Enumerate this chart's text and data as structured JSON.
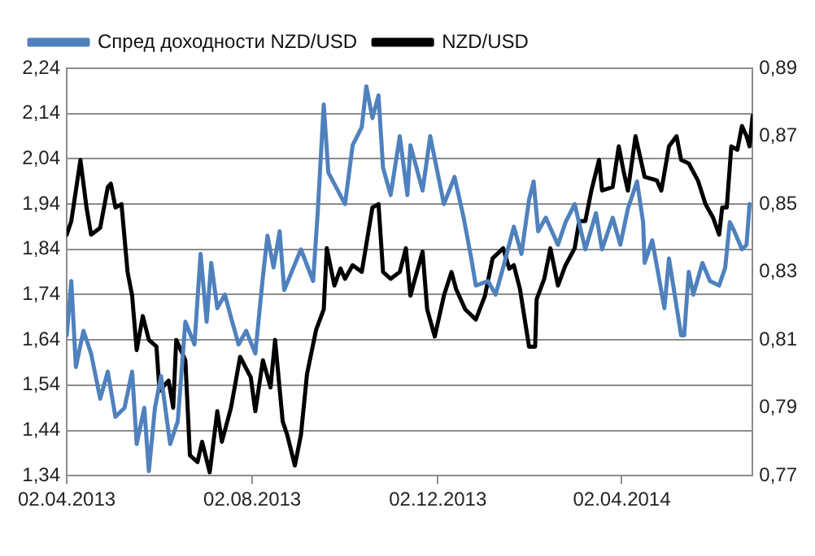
{
  "chart_data": {
    "type": "line",
    "legend": "top left",
    "grid": "y",
    "marker": "none",
    "line_style": "solid",
    "xlim": [
      "2013-04-02",
      "2014-06-27"
    ],
    "xticks": [
      {
        "value": "2013-04-02",
        "label": "02.04.2013"
      },
      {
        "value": "2013-08-02",
        "label": "02.08.2013"
      },
      {
        "value": "2013-12-02",
        "label": "02.12.2013"
      },
      {
        "value": "2014-04-02",
        "label": "02.04.2014"
      }
    ],
    "ylim": [
      1.34,
      2.24
    ],
    "yticks": [
      {
        "value": 1.34,
        "label": "1,34"
      },
      {
        "value": 1.44,
        "label": "1,44"
      },
      {
        "value": 1.54,
        "label": "1,54"
      },
      {
        "value": 1.64,
        "label": "1,64"
      },
      {
        "value": 1.74,
        "label": "1,74"
      },
      {
        "value": 1.84,
        "label": "1,84"
      },
      {
        "value": 1.94,
        "label": "1,94"
      },
      {
        "value": 2.04,
        "label": "2,04"
      },
      {
        "value": 2.14,
        "label": "2,14"
      },
      {
        "value": 2.24,
        "label": "2,24"
      }
    ],
    "y2lim": [
      0.77,
      0.89
    ],
    "y2ticks": [
      {
        "value": 0.77,
        "label": "0,77"
      },
      {
        "value": 0.79,
        "label": "0,79"
      },
      {
        "value": 0.81,
        "label": "0,81"
      },
      {
        "value": 0.83,
        "label": "0,83"
      },
      {
        "value": 0.85,
        "label": "0,85"
      },
      {
        "value": 0.87,
        "label": "0,87"
      },
      {
        "value": 0.89,
        "label": "0,89"
      }
    ],
    "series": [
      {
        "name": "Спред доходности NZD/USD",
        "color": "#4f81bd",
        "axis": "y",
        "x": [
          "2013-04-02",
          "2013-04-05",
          "2013-04-08",
          "2013-04-13",
          "2013-04-18",
          "2013-04-24",
          "2013-04-29",
          "2013-05-04",
          "2013-05-10",
          "2013-05-15",
          "2013-05-18",
          "2013-05-23",
          "2013-05-26",
          "2013-05-30",
          "2013-06-03",
          "2013-06-09",
          "2013-06-14",
          "2013-06-19",
          "2013-06-25",
          "2013-06-29",
          "2013-07-03",
          "2013-07-06",
          "2013-07-10",
          "2013-07-15",
          "2013-07-19",
          "2013-07-24",
          "2013-07-29",
          "2013-08-04",
          "2013-08-09",
          "2013-08-12",
          "2013-08-16",
          "2013-08-20",
          "2013-08-23",
          "2013-09-03",
          "2013-09-11",
          "2013-09-14",
          "2013-09-18",
          "2013-09-21",
          "2013-10-02",
          "2013-10-07",
          "2013-10-13",
          "2013-10-16",
          "2013-10-20",
          "2013-10-24",
          "2013-10-27",
          "2013-11-01",
          "2013-11-07",
          "2013-11-12",
          "2013-11-14",
          "2013-11-22",
          "2013-11-27",
          "2013-12-06",
          "2013-12-13",
          "2013-12-19",
          "2013-12-24",
          "2013-12-27",
          "2014-01-04",
          "2014-01-09",
          "2014-01-14",
          "2014-01-21",
          "2014-01-26",
          "2014-01-31",
          "2014-02-03",
          "2014-02-06",
          "2014-02-11",
          "2014-02-19",
          "2014-02-24",
          "2014-03-02",
          "2014-03-09",
          "2014-03-16",
          "2014-03-20",
          "2014-03-27",
          "2014-04-01",
          "2014-04-06",
          "2014-04-12",
          "2014-04-16",
          "2014-04-17",
          "2014-04-22",
          "2014-04-30",
          "2014-05-03",
          "2014-05-11",
          "2014-05-13",
          "2014-05-16",
          "2014-05-19",
          "2014-05-25",
          "2014-05-30",
          "2014-06-05",
          "2014-06-09",
          "2014-06-12",
          "2014-06-15",
          "2014-06-20",
          "2014-06-23",
          "2014-06-25"
        ],
        "values": [
          1.65,
          1.77,
          1.58,
          1.66,
          1.61,
          1.51,
          1.57,
          1.47,
          1.49,
          1.57,
          1.41,
          1.49,
          1.35,
          1.49,
          1.56,
          1.41,
          1.46,
          1.68,
          1.63,
          1.83,
          1.68,
          1.81,
          1.71,
          1.74,
          1.69,
          1.63,
          1.66,
          1.61,
          1.78,
          1.87,
          1.8,
          1.88,
          1.75,
          1.84,
          1.77,
          1.92,
          2.16,
          2.01,
          1.94,
          2.07,
          2.11,
          2.2,
          2.13,
          2.18,
          2.02,
          1.96,
          2.09,
          1.96,
          2.07,
          1.97,
          2.09,
          1.94,
          2.0,
          1.91,
          1.82,
          1.76,
          1.77,
          1.74,
          1.8,
          1.89,
          1.83,
          1.95,
          1.99,
          1.88,
          1.91,
          1.85,
          1.9,
          1.94,
          1.84,
          1.92,
          1.84,
          1.91,
          1.85,
          1.93,
          1.99,
          1.9,
          1.81,
          1.86,
          1.71,
          1.82,
          1.65,
          1.65,
          1.79,
          1.74,
          1.81,
          1.77,
          1.76,
          1.8,
          1.9,
          1.88,
          1.84,
          1.85,
          1.94
        ]
      },
      {
        "name": "NZD/USD",
        "color": "#000000",
        "axis": "y2",
        "x": [
          "2013-04-02",
          "2013-04-05",
          "2013-04-11",
          "2013-04-15",
          "2013-04-18",
          "2013-04-24",
          "2013-04-29",
          "2013-05-01",
          "2013-05-04",
          "2013-05-08",
          "2013-05-10",
          "2013-05-12",
          "2013-05-15",
          "2013-05-18",
          "2013-05-22",
          "2013-05-26",
          "2013-05-31",
          "2013-06-02",
          "2013-06-08",
          "2013-06-11",
          "2013-06-13",
          "2013-06-19",
          "2013-06-22",
          "2013-06-27",
          "2013-06-30",
          "2013-07-05",
          "2013-07-10",
          "2013-07-13",
          "2013-07-19",
          "2013-07-25",
          "2013-08-01",
          "2013-08-04",
          "2013-08-09",
          "2013-08-14",
          "2013-08-17",
          "2013-08-22",
          "2013-08-25",
          "2013-08-30",
          "2013-09-03",
          "2013-09-07",
          "2013-09-13",
          "2013-09-18",
          "2013-09-20",
          "2013-09-25",
          "2013-09-29",
          "2013-10-02",
          "2013-10-07",
          "2013-10-13",
          "2013-10-20",
          "2013-10-24",
          "2013-10-27",
          "2013-11-01",
          "2013-11-07",
          "2013-11-11",
          "2013-11-14",
          "2013-11-17",
          "2013-11-22",
          "2013-11-25",
          "2013-11-30",
          "2013-12-06",
          "2013-12-11",
          "2013-12-14",
          "2013-12-20",
          "2013-12-27",
          "2014-01-02",
          "2014-01-07",
          "2014-01-14",
          "2014-01-18",
          "2014-01-21",
          "2014-01-25",
          "2014-01-31",
          "2014-02-04",
          "2014-02-05",
          "2014-02-10",
          "2014-02-14",
          "2014-02-19",
          "2014-02-24",
          "2014-03-02",
          "2014-03-05",
          "2014-03-09",
          "2014-03-13",
          "2014-03-18",
          "2014-03-20",
          "2014-03-27",
          "2014-03-31",
          "2014-04-03",
          "2014-04-06",
          "2014-04-11",
          "2014-04-14",
          "2014-04-17",
          "2014-04-25",
          "2014-04-28",
          "2014-05-03",
          "2014-05-08",
          "2014-05-11",
          "2014-05-16",
          "2014-05-22",
          "2014-05-27",
          "2014-06-01",
          "2014-06-05",
          "2014-06-07",
          "2014-06-10",
          "2014-06-13",
          "2014-06-17",
          "2014-06-20",
          "2014-06-23",
          "2014-06-25",
          "2014-06-27"
        ],
        "values": [
          0.841,
          0.845,
          0.863,
          0.849,
          0.841,
          0.843,
          0.855,
          0.856,
          0.849,
          0.85,
          0.84,
          0.83,
          0.823,
          0.807,
          0.817,
          0.81,
          0.808,
          0.795,
          0.798,
          0.79,
          0.81,
          0.804,
          0.776,
          0.774,
          0.78,
          0.771,
          0.789,
          0.78,
          0.79,
          0.805,
          0.799,
          0.789,
          0.804,
          0.796,
          0.81,
          0.786,
          0.782,
          0.773,
          0.782,
          0.8,
          0.813,
          0.819,
          0.837,
          0.826,
          0.831,
          0.828,
          0.832,
          0.83,
          0.849,
          0.85,
          0.83,
          0.828,
          0.83,
          0.837,
          0.823,
          0.828,
          0.836,
          0.819,
          0.811,
          0.823,
          0.83,
          0.825,
          0.819,
          0.816,
          0.823,
          0.834,
          0.837,
          0.831,
          0.832,
          0.825,
          0.808,
          0.808,
          0.822,
          0.828,
          0.837,
          0.826,
          0.832,
          0.837,
          0.845,
          0.845,
          0.854,
          0.863,
          0.854,
          0.855,
          0.867,
          0.86,
          0.854,
          0.87,
          0.864,
          0.858,
          0.857,
          0.854,
          0.867,
          0.87,
          0.863,
          0.862,
          0.857,
          0.85,
          0.846,
          0.841,
          0.849,
          0.849,
          0.867,
          0.866,
          0.873,
          0.87,
          0.867,
          0.876
        ]
      }
    ]
  }
}
